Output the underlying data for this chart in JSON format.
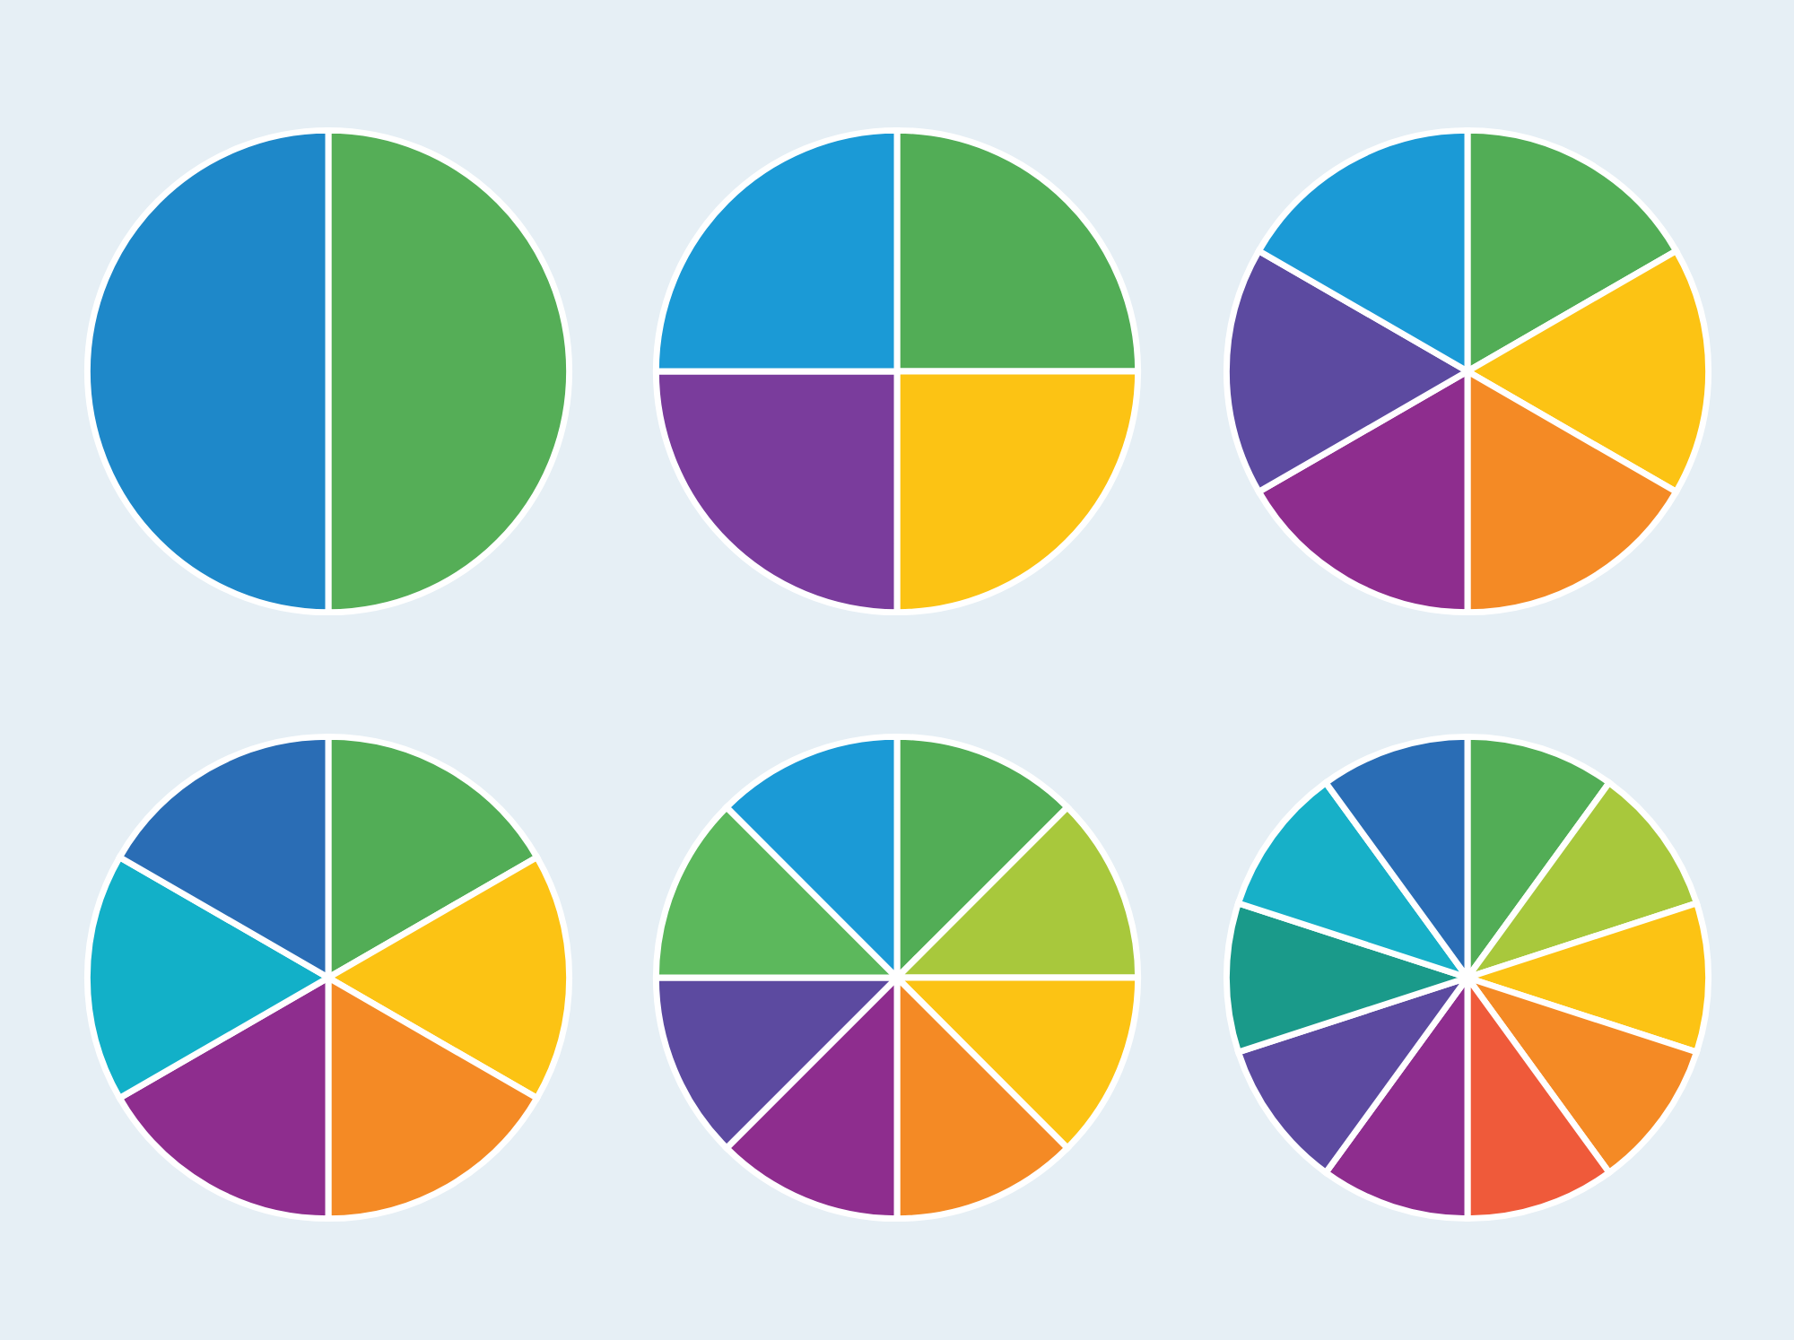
{
  "chart_data": [
    {
      "type": "pie",
      "categories": [
        null,
        null
      ],
      "values": [
        50,
        50
      ],
      "colors": [
        "#55ae57",
        "#1e88c9"
      ]
    },
    {
      "type": "pie",
      "categories": [
        null,
        null,
        null,
        null
      ],
      "values": [
        25,
        25,
        25,
        25
      ],
      "colors": [
        "#52ad56",
        "#fcc314",
        "#7a3c9c",
        "#1b9ad6"
      ]
    },
    {
      "type": "pie",
      "categories": [
        null,
        null,
        null,
        null,
        null,
        null
      ],
      "values": [
        16.67,
        16.67,
        16.67,
        16.67,
        16.67,
        16.67
      ],
      "colors": [
        "#52ad56",
        "#fcc314",
        "#f48a25",
        "#8e2d8e",
        "#5c4aa0",
        "#1b9ad6"
      ]
    },
    {
      "type": "pie",
      "categories": [
        null,
        null,
        null,
        null,
        null,
        null
      ],
      "values": [
        16.67,
        16.67,
        16.67,
        16.67,
        16.67,
        16.67
      ],
      "colors": [
        "#52ad56",
        "#fcc314",
        "#f48a25",
        "#8e2d8e",
        "#12b0c8",
        "#2a6db5"
      ]
    },
    {
      "type": "pie",
      "categories": [
        null,
        null,
        null,
        null,
        null,
        null,
        null,
        null
      ],
      "values": [
        12.5,
        12.5,
        12.5,
        12.5,
        12.5,
        12.5,
        12.5,
        12.5
      ],
      "colors": [
        "#52ad56",
        "#a8c83c",
        "#fcc314",
        "#f48a25",
        "#8e2d8e",
        "#5c4aa0",
        "#5cb85c",
        "#1b9ad6"
      ]
    },
    {
      "type": "pie",
      "categories": [
        null,
        null,
        null,
        null,
        null,
        null,
        null,
        null,
        null,
        null
      ],
      "values": [
        10,
        10,
        10,
        10,
        10,
        10,
        10,
        10,
        10,
        10
      ],
      "colors": [
        "#52ad56",
        "#a8c83c",
        "#fcc314",
        "#f48a25",
        "#ef5a3a",
        "#8e2d8e",
        "#5c4aa0",
        "#1a9a8a",
        "#17b0c8",
        "#2a6db5"
      ]
    }
  ]
}
